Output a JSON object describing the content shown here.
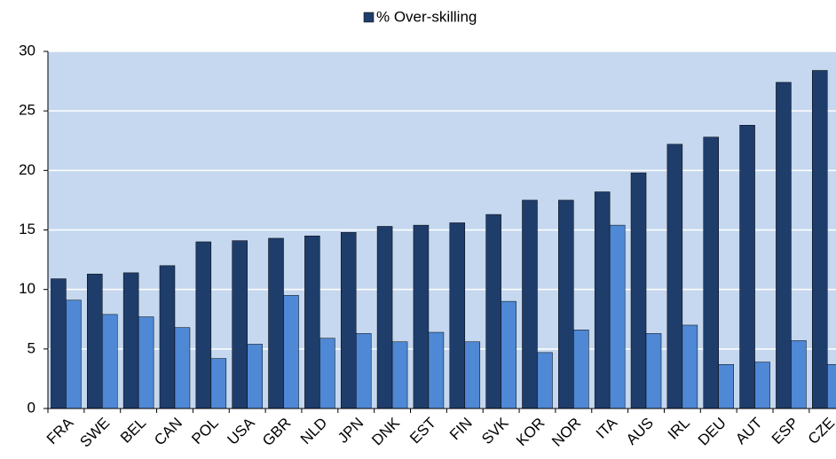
{
  "chart_data": {
    "type": "bar",
    "categories": [
      "FRA",
      "SWE",
      "BEL",
      "CAN",
      "POL",
      "USA",
      "GBR",
      "NLD",
      "JPN",
      "DNK",
      "EST",
      "FIN",
      "SVK",
      "KOR",
      "NOR",
      "ITA",
      "AUS",
      "IRL",
      "DEU",
      "AUT",
      "ESP",
      "CZE"
    ],
    "series": [
      {
        "name": "% Over-skilling",
        "color": "#1f3d6b",
        "values": [
          10.9,
          11.3,
          11.4,
          12.0,
          14.0,
          14.1,
          14.3,
          14.5,
          14.8,
          15.3,
          15.4,
          15.6,
          16.3,
          17.5,
          17.5,
          18.2,
          19.8,
          22.2,
          22.8,
          23.8,
          27.4,
          28.4
        ]
      },
      {
        "color": "#4f88d4",
        "values": [
          9.1,
          7.9,
          7.7,
          6.8,
          4.2,
          5.4,
          9.5,
          5.9,
          6.3,
          5.6,
          6.4,
          5.6,
          9.0,
          4.7,
          6.6,
          15.4,
          6.3,
          7.0,
          3.7,
          3.9,
          5.7,
          3.7
        ]
      }
    ],
    "ylim": [
      0,
      30
    ],
    "yticks": [
      0,
      5,
      10,
      15,
      20,
      25,
      30
    ],
    "grid": true,
    "legend": "top"
  }
}
